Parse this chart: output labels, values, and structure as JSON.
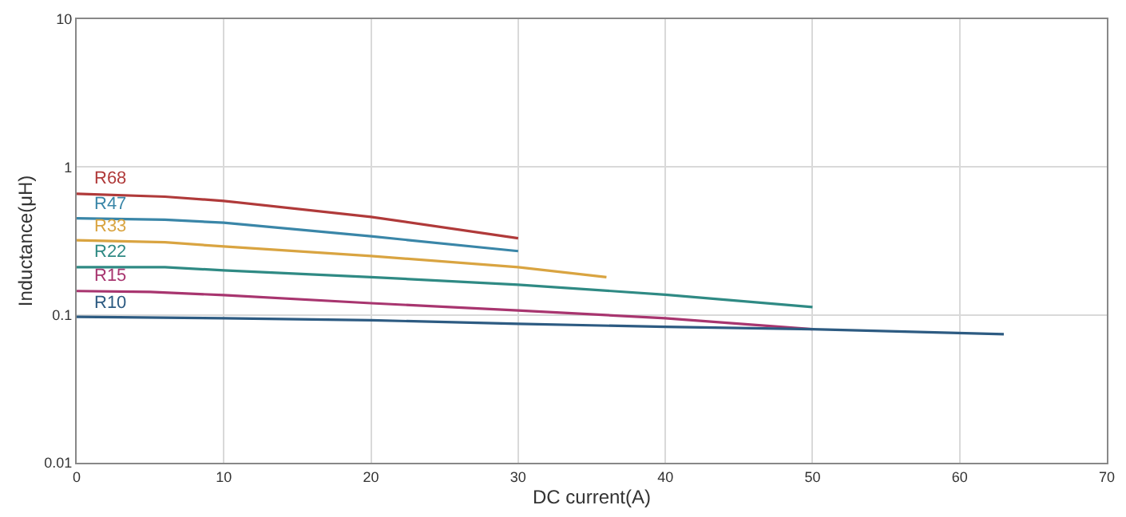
{
  "chart_data": {
    "type": "line",
    "xlabel": "DC current(A)",
    "ylabel": "Inductance(μH)",
    "xlim": [
      0,
      70
    ],
    "xticks": [
      0,
      10,
      20,
      30,
      40,
      50,
      60,
      70
    ],
    "ylim": [
      0.01,
      10
    ],
    "yticks": [
      0.01,
      0.1,
      1,
      10
    ],
    "log": "y",
    "grid": true,
    "legend": false,
    "marker": "none",
    "line_style": "solid",
    "series": [
      {
        "name": "R68",
        "color": "#b03a3a",
        "x": [
          0,
          6,
          10,
          20,
          30
        ],
        "values": [
          0.66,
          0.63,
          0.59,
          0.46,
          0.33
        ]
      },
      {
        "name": "R47",
        "color": "#3a86a8",
        "x": [
          0,
          6,
          10,
          20,
          30
        ],
        "values": [
          0.45,
          0.44,
          0.42,
          0.34,
          0.27
        ]
      },
      {
        "name": "R33",
        "color": "#d9a441",
        "x": [
          0,
          6,
          10,
          20,
          30,
          36
        ],
        "values": [
          0.32,
          0.31,
          0.29,
          0.25,
          0.21,
          0.18
        ]
      },
      {
        "name": "R22",
        "color": "#2f8a84",
        "x": [
          0,
          6,
          10,
          20,
          30,
          40,
          50
        ],
        "values": [
          0.21,
          0.21,
          0.2,
          0.18,
          0.16,
          0.137,
          0.113
        ]
      },
      {
        "name": "R15",
        "color": "#a8356f",
        "x": [
          0,
          5,
          10,
          20,
          30,
          40,
          50
        ],
        "values": [
          0.145,
          0.143,
          0.136,
          0.12,
          0.107,
          0.095,
          0.08
        ]
      },
      {
        "name": "R10",
        "color": "#2d5b82",
        "x": [
          0,
          10,
          20,
          30,
          40,
          50,
          63
        ],
        "values": [
          0.097,
          0.095,
          0.092,
          0.087,
          0.083,
          0.08,
          0.074
        ]
      }
    ]
  }
}
